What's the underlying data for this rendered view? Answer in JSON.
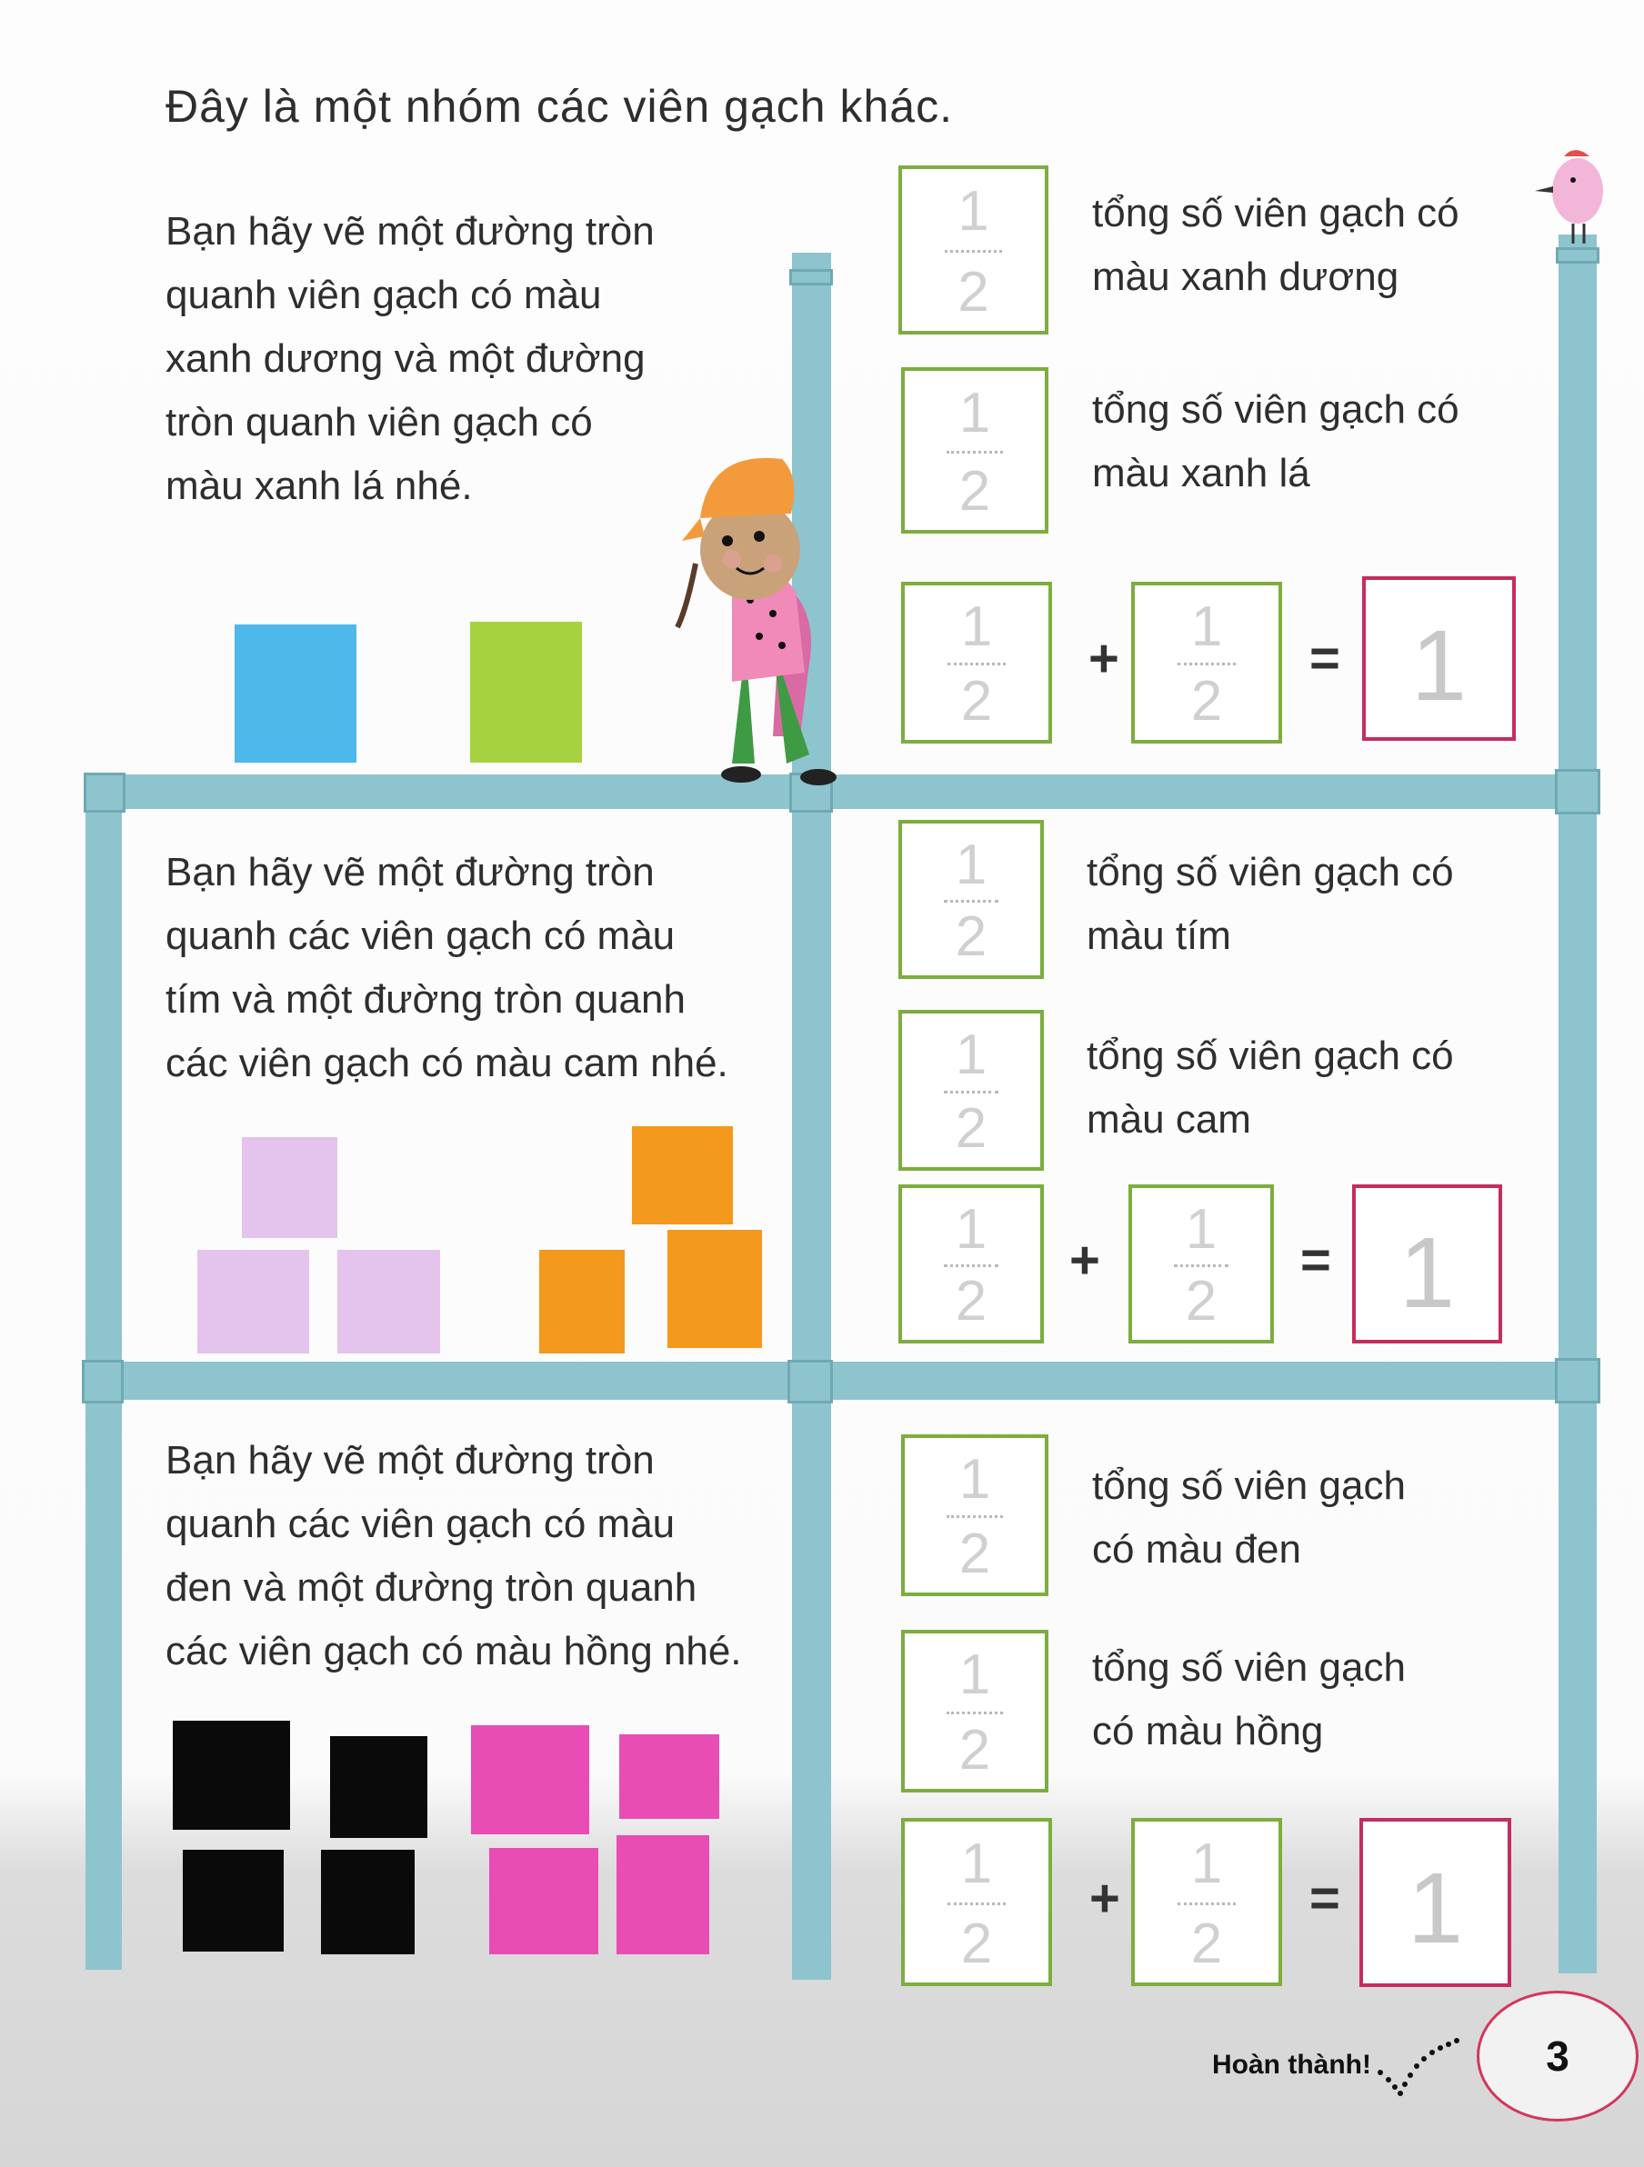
{
  "title": "Đây là một nhóm các viên gạch khác.",
  "colors": {
    "pole": "#8ec4cd",
    "fraction_box_border": "#7dad3f",
    "whole_box_border": "#c62d5c",
    "blue": "#4db8e9",
    "green": "#a7d23f",
    "purple": "#e4c3ec",
    "orange": "#f3991d",
    "black": "#0a0a0a",
    "pink": "#e84db4"
  },
  "fraction": {
    "numerator": "1",
    "denominator": "2",
    "plus": "+",
    "equals": "=",
    "whole": "1"
  },
  "sections": [
    {
      "instruction": [
        "Bạn hãy vẽ một đường tròn",
        "quanh viên gạch có màu",
        "xanh dương và một đường",
        "tròn quanh viên gạch có",
        "màu xanh lá nhé."
      ],
      "items": [
        {
          "label": [
            "tổng số viên gạch có",
            "màu xanh dương"
          ]
        },
        {
          "label": [
            "tổng số viên gạch có",
            "màu xanh lá"
          ]
        }
      ]
    },
    {
      "instruction": [
        "Bạn hãy vẽ một đường tròn",
        "quanh các viên gạch có màu",
        "tím và một đường tròn quanh",
        "các viên gạch có màu cam nhé."
      ],
      "items": [
        {
          "label": [
            "tổng số viên gạch có",
            "màu tím"
          ]
        },
        {
          "label": [
            "tổng số viên gạch có",
            "màu cam"
          ]
        }
      ]
    },
    {
      "instruction": [
        "Bạn hãy vẽ một đường tròn",
        "quanh các viên gạch có màu",
        "đen và một đường tròn quanh",
        "các viên gạch có màu hồng nhé."
      ],
      "items": [
        {
          "label": [
            "tổng số viên gạch",
            "có màu đen"
          ]
        },
        {
          "label": [
            "tổng số viên gạch",
            "có màu hồng"
          ]
        }
      ]
    }
  ],
  "footer": {
    "done_label": "Hoàn thành!",
    "page_number": "3"
  }
}
